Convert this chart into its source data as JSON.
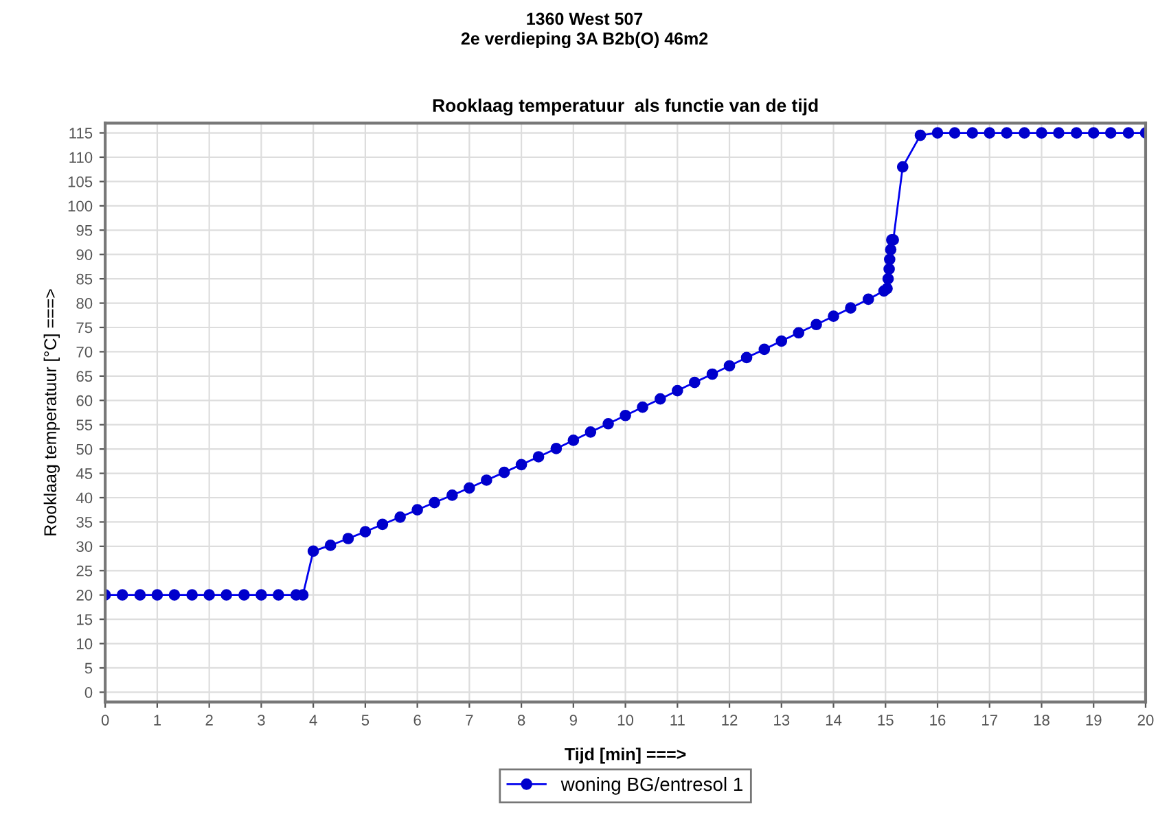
{
  "chart_data": {
    "type": "line",
    "title": "1360 West 507\n2e verdieping 3A B2b(O) 46m2",
    "subtitle": "Rooklaag temperatuur  als functie van de tijd",
    "xlabel": "Tijd [min] ===>",
    "ylabel": "Rooklaag temperatuur [°C] ===>",
    "series": [
      {
        "name": "woning BG/entresol 1",
        "color": "#0000ee",
        "x": [
          0,
          0.33,
          0.67,
          1,
          1.33,
          1.67,
          2,
          2.33,
          2.67,
          3,
          3.33,
          3.67,
          3.8,
          4,
          4.33,
          4.67,
          5,
          5.33,
          5.67,
          6,
          6.33,
          6.67,
          7,
          7.33,
          7.67,
          8,
          8.33,
          8.67,
          9,
          9.33,
          9.67,
          10,
          10.33,
          10.67,
          11,
          11.33,
          11.67,
          12,
          12.33,
          12.67,
          13,
          13.33,
          13.67,
          14,
          14.33,
          14.67,
          14.97,
          15.03,
          15.05,
          15.07,
          15.08,
          15.1,
          15.12,
          15.15,
          15.33,
          15.67,
          16,
          16.33,
          16.67,
          17,
          17.33,
          17.67,
          18,
          18.33,
          18.67,
          19,
          19.33,
          19.67,
          20
        ],
        "values": [
          20,
          20,
          20,
          20,
          20,
          20,
          20,
          20,
          20,
          20,
          20,
          20,
          20,
          29,
          30.2,
          31.6,
          33,
          34.5,
          36,
          37.5,
          39,
          40.5,
          42,
          43.6,
          45.2,
          46.8,
          48.4,
          50.1,
          51.8,
          53.5,
          55.2,
          56.9,
          58.6,
          60.3,
          62,
          63.7,
          65.4,
          67.1,
          68.8,
          70.5,
          72.2,
          73.9,
          75.6,
          77.3,
          79,
          80.8,
          82.5,
          83,
          85,
          87,
          89,
          91,
          93,
          93,
          108,
          114.5,
          115,
          115,
          115,
          115,
          115,
          115,
          115,
          115,
          115,
          115,
          115,
          115,
          115
        ]
      }
    ],
    "xlim": [
      0,
      20
    ],
    "xticks": [
      0,
      1,
      2,
      3,
      4,
      5,
      6,
      7,
      8,
      9,
      10,
      11,
      12,
      13,
      14,
      15,
      16,
      17,
      18,
      19,
      20
    ],
    "ylim": [
      -2,
      117
    ],
    "yticks": [
      0,
      5,
      10,
      15,
      20,
      25,
      30,
      35,
      40,
      45,
      50,
      55,
      60,
      65,
      70,
      75,
      80,
      85,
      90,
      95,
      100,
      105,
      110,
      115
    ],
    "grid": true,
    "legend": "bottom",
    "marker": "circle",
    "line_style": "solid"
  }
}
